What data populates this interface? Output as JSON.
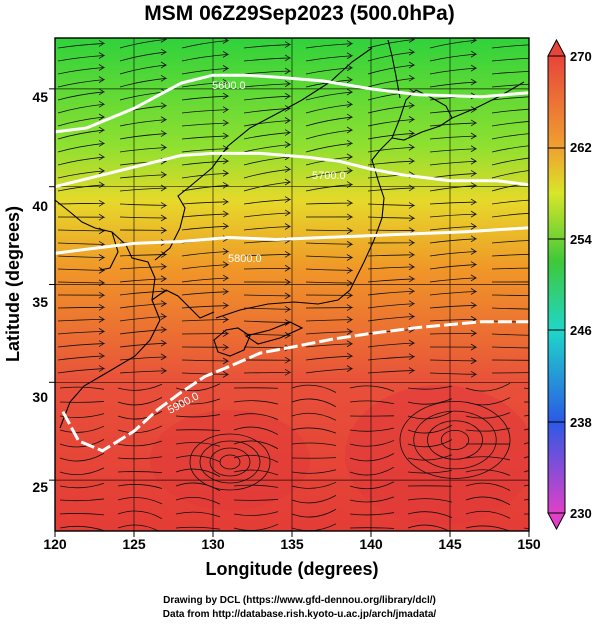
{
  "header": {
    "title": "MSM 06Z29Sep2023 (500.0hPa)"
  },
  "axes": {
    "xlabel": "Longitude (degrees)",
    "ylabel": "Latitude  (degrees)",
    "xticks": [
      "120",
      "125",
      "130",
      "135",
      "140",
      "145",
      "150"
    ],
    "yticks": [
      "25",
      "30",
      "35",
      "40",
      "45"
    ]
  },
  "colorbar": {
    "ticks": [
      "270",
      "262",
      "254",
      "246",
      "238",
      "230"
    ],
    "colors": {
      "c270": "#e8443a",
      "c262": "#d8e628",
      "c254": "#3ec83a",
      "c246": "#1fd7c8",
      "c238": "#2a5ae6",
      "c230": "#e040c8"
    }
  },
  "map": {
    "contour_labels": [
      "5600.0",
      "5700.0",
      "5800.0",
      "5900.0"
    ],
    "field_colors": {
      "north": "#2fd23c",
      "band1": "#8fe030",
      "band2": "#e6d92a",
      "band3": "#f09628",
      "south": "#e8503a",
      "tropics": "#e43c36"
    }
  },
  "credits": {
    "line1": "Drawing by DCL (https://www.gfd-dennou.org/library/dcl/)",
    "line2": "Data from http://database.rish.kyoto-u.ac.jp/arch/jmadata/"
  },
  "chart_data": {
    "type": "heatmap",
    "title": "MSM 06Z29Sep2023 (500.0hPa)",
    "xlabel": "Longitude (degrees)",
    "ylabel": "Latitude  (degrees)",
    "xlim": [
      120,
      150
    ],
    "ylim": [
      22.4,
      47.6
    ],
    "colorbar_range": [
      230,
      270
    ],
    "colorbar_ticks": [
      230,
      238,
      246,
      254,
      262,
      270
    ],
    "x_ticks": [
      120,
      125,
      130,
      135,
      140,
      145,
      150
    ],
    "y_ticks": [
      25,
      30,
      35,
      40,
      45
    ],
    "field_profile": {
      "latitude": [
        47,
        44,
        41,
        39,
        37,
        35,
        33,
        30,
        27,
        24
      ],
      "value": [
        255,
        257,
        259,
        261,
        263,
        265,
        266,
        267,
        268,
        269
      ]
    },
    "contour_levels": [
      5600.0,
      5700.0,
      5800.0,
      5900.0
    ],
    "contour_lines": [
      {
        "level": 5600.0,
        "lon": [
          120.0,
          122,
          125,
          128,
          130,
          132,
          134,
          137,
          140,
          143,
          147,
          150
        ],
        "lat": [
          42.8,
          43.0,
          44.0,
          45.3,
          45.7,
          45.7,
          45.6,
          45.4,
          45.0,
          44.7,
          44.6,
          44.8
        ]
      },
      {
        "level": 5700.0,
        "lon": [
          120.0,
          123,
          126,
          128,
          130,
          133,
          136,
          138,
          140,
          142,
          145,
          148,
          150
        ],
        "lat": [
          40.0,
          40.6,
          41.2,
          41.6,
          41.7,
          41.7,
          41.5,
          41.3,
          40.9,
          40.6,
          40.3,
          40.3,
          40.1
        ]
      },
      {
        "level": 5800.0,
        "lon": [
          120.0,
          122,
          125,
          128,
          131,
          134,
          137,
          140,
          143,
          146,
          150
        ],
        "lat": [
          36.6,
          36.8,
          37.1,
          37.2,
          37.4,
          37.3,
          37.4,
          37.5,
          37.6,
          37.7,
          37.9
        ]
      },
      {
        "level": 5900.0,
        "lon": [
          120.5,
          121.5,
          123,
          125,
          126.5,
          128,
          129.5,
          131,
          133,
          135,
          137.5,
          140,
          143,
          147,
          150
        ],
        "lat": [
          28.5,
          27.0,
          26.5,
          27.5,
          28.6,
          29.5,
          30.3,
          30.8,
          31.5,
          31.8,
          32.2,
          32.5,
          32.8,
          33.1,
          33.1
        ]
      }
    ]
  }
}
